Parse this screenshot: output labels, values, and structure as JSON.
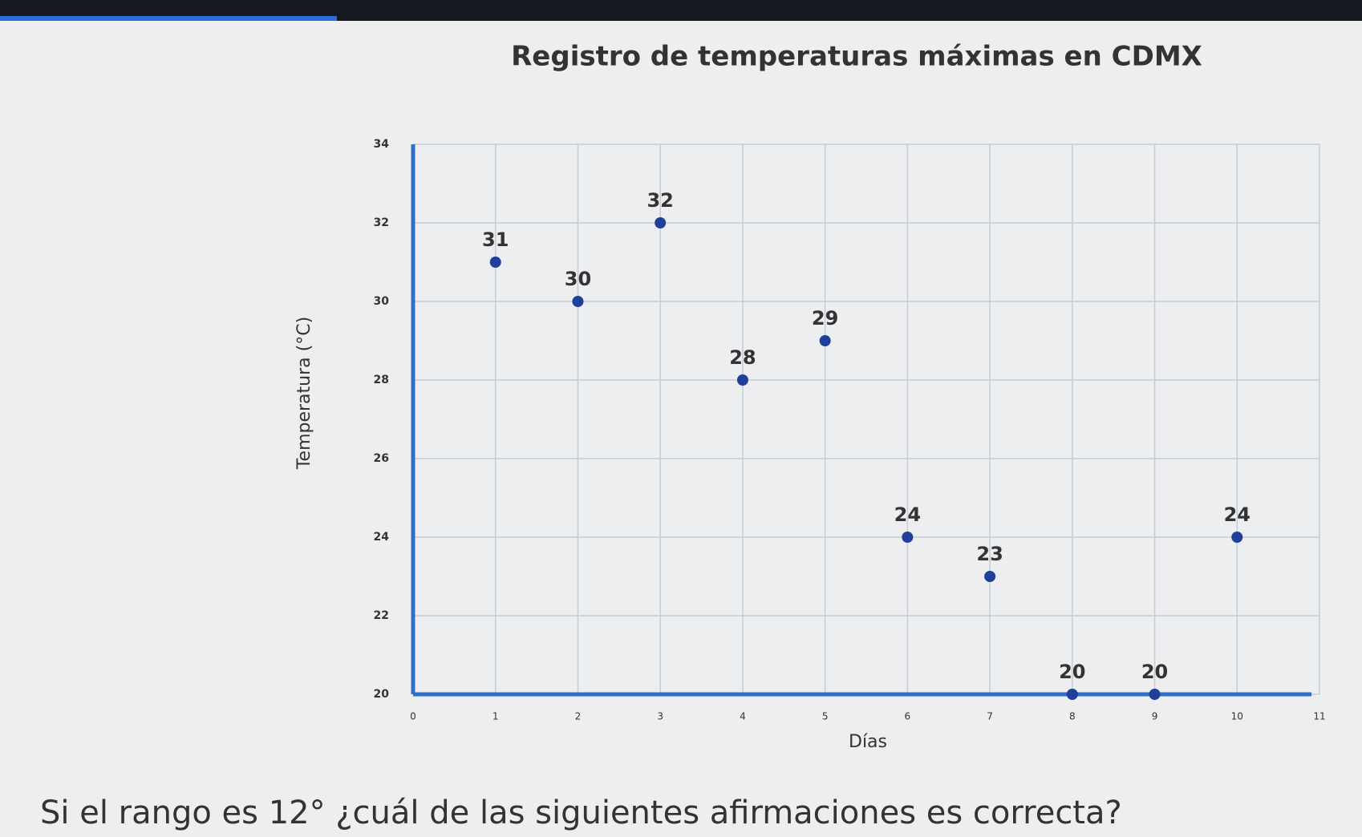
{
  "chart_data": {
    "type": "scatter",
    "title": "Registro de temperaturas máximas en CDMX",
    "x_label": "Días",
    "y_label": "Temperatura (°C)",
    "x": [
      1,
      2,
      3,
      4,
      5,
      6,
      7,
      8,
      9,
      10
    ],
    "values": [
      31,
      30,
      32,
      28,
      29,
      24,
      23,
      20,
      20,
      24
    ],
    "color": "#1f3f9a",
    "xlim": [
      0,
      11
    ],
    "xticks": [
      0,
      1,
      2,
      3,
      4,
      5,
      6,
      7,
      8,
      9,
      10,
      11
    ],
    "ylim": [
      20,
      34
    ],
    "yticks": [
      20,
      22,
      24,
      26,
      28,
      30,
      32,
      34
    ],
    "grid": true
  },
  "question": "Si el rango es 12° ¿cuál de las siguientes afirmaciones es correcta?"
}
